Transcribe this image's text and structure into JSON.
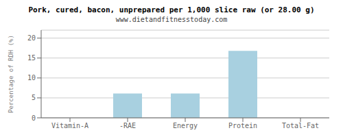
{
  "chart_data": {
    "type": "bar",
    "title": "Pork, cured, bacon, unprepared per 1,000 slice raw (or 28.00 g)",
    "subtitle": "www.dietandfitnesstoday.com",
    "categories": [
      "Vitamin-A",
      "-RAE",
      "Energy",
      "Protein",
      "Total-Fat"
    ],
    "values": [
      0.0,
      6.1,
      6.1,
      16.8,
      0.0
    ],
    "color": "#a8d0e0",
    "ylabel": "Percentage of RDH (%)",
    "ylim": [
      0,
      22
    ],
    "yticks": [
      0,
      5,
      10,
      15,
      20
    ],
    "grid": true
  }
}
